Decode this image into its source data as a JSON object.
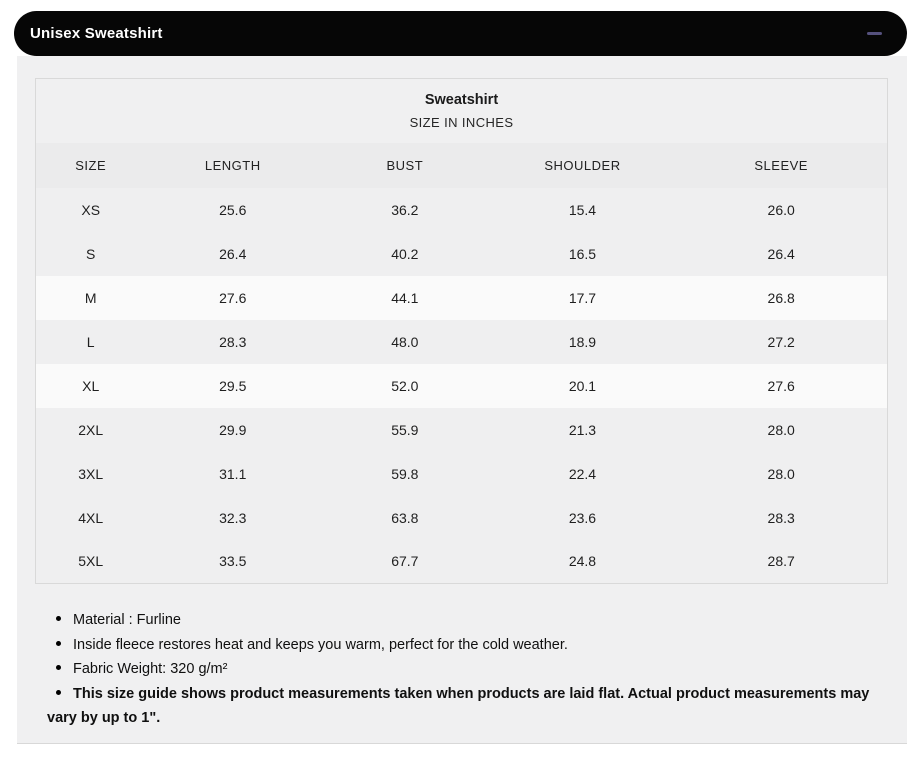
{
  "header": {
    "title": "Unisex Sweatshirt"
  },
  "colors": {
    "header_bg": "#060606",
    "header_text": "#ffffff",
    "minus_icon": "#55517d",
    "panel_bg": "#f0f0f1",
    "column_header_bg": "#ebebec",
    "row_gray": "#efeff0",
    "row_light": "#fafafa"
  },
  "table": {
    "title": "Sweatshirt",
    "subtitle": "SIZE IN INCHES",
    "columns": [
      "SIZE",
      "LENGTH",
      "BUST",
      "SHOULDER",
      "SLEEVE"
    ],
    "rows": [
      {
        "cells": [
          "XS",
          "25.6",
          "36.2",
          "15.4",
          "26.0"
        ],
        "shade": "gray"
      },
      {
        "cells": [
          "S",
          "26.4",
          "40.2",
          "16.5",
          "26.4"
        ],
        "shade": "gray"
      },
      {
        "cells": [
          "M",
          "27.6",
          "44.1",
          "17.7",
          "26.8"
        ],
        "shade": "light"
      },
      {
        "cells": [
          "L",
          "28.3",
          "48.0",
          "18.9",
          "27.2"
        ],
        "shade": "gray"
      },
      {
        "cells": [
          "XL",
          "29.5",
          "52.0",
          "20.1",
          "27.6"
        ],
        "shade": "light"
      },
      {
        "cells": [
          "2XL",
          "29.9",
          "55.9",
          "21.3",
          "28.0"
        ],
        "shade": "gray"
      },
      {
        "cells": [
          "3XL",
          "31.1",
          "59.8",
          "22.4",
          "28.0"
        ],
        "shade": "gray"
      },
      {
        "cells": [
          "4XL",
          "32.3",
          "63.8",
          "23.6",
          "28.3"
        ],
        "shade": "gray"
      },
      {
        "cells": [
          "5XL",
          "33.5",
          "67.7",
          "24.8",
          "28.7"
        ],
        "shade": "gray"
      }
    ]
  },
  "notes": [
    {
      "text": "Material : Furline",
      "bold": false
    },
    {
      "text": "Inside fleece restores heat and keeps you warm, perfect for the cold weather.",
      "bold": false
    },
    {
      "text": "Fabric Weight: 320 g/m²",
      "bold": false
    },
    {
      "text": "This size guide shows product measurements taken when products are laid flat. Actual product measurements may vary by up to 1\".",
      "bold": true
    }
  ]
}
